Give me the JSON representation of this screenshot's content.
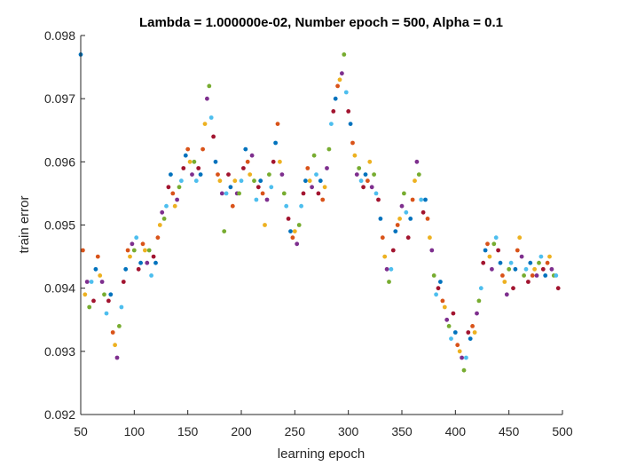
{
  "chart_data": {
    "type": "scatter",
    "title": "Lambda = 1.000000e-02, Number epoch = 500, Alpha = 0.1",
    "xlabel": "learning epoch",
    "ylabel": "train error",
    "xlim": [
      50,
      500
    ],
    "ylim": [
      0.092,
      0.098
    ],
    "xticks": [
      50,
      100,
      150,
      200,
      250,
      300,
      350,
      400,
      450,
      500
    ],
    "xtick_labels": [
      "50",
      "100",
      "150",
      "200",
      "250",
      "300",
      "350",
      "400",
      "450",
      "500"
    ],
    "yticks": [
      0.092,
      0.093,
      0.094,
      0.095,
      0.096,
      0.097,
      0.098
    ],
    "ytick_labels": [
      "0.092",
      "0.093",
      "0.094",
      "0.095",
      "0.096",
      "0.097",
      "0.098"
    ],
    "grid": false,
    "colors": [
      "#0072BD",
      "#D95319",
      "#EDB120",
      "#7E2F8E",
      "#77AC30",
      "#4DBEEE",
      "#A2142F"
    ],
    "points": [
      [
        50,
        0.0977
      ],
      [
        52,
        0.0946
      ],
      [
        54,
        0.0939
      ],
      [
        56,
        0.0941
      ],
      [
        58,
        0.0937
      ],
      [
        60,
        0.0941
      ],
      [
        62,
        0.0938
      ],
      [
        64,
        0.0943
      ],
      [
        66,
        0.0945
      ],
      [
        68,
        0.0942
      ],
      [
        70,
        0.0941
      ],
      [
        72,
        0.0939
      ],
      [
        74,
        0.0936
      ],
      [
        76,
        0.0938
      ],
      [
        78,
        0.0939
      ],
      [
        80,
        0.0933
      ],
      [
        82,
        0.0931
      ],
      [
        84,
        0.0929
      ],
      [
        86,
        0.0934
      ],
      [
        88,
        0.0937
      ],
      [
        90,
        0.0941
      ],
      [
        92,
        0.0943
      ],
      [
        94,
        0.0946
      ],
      [
        96,
        0.0945
      ],
      [
        98,
        0.0947
      ],
      [
        100,
        0.0946
      ],
      [
        102,
        0.0948
      ],
      [
        104,
        0.0943
      ],
      [
        106,
        0.0944
      ],
      [
        108,
        0.0947
      ],
      [
        110,
        0.0946
      ],
      [
        112,
        0.0944
      ],
      [
        114,
        0.0946
      ],
      [
        116,
        0.0942
      ],
      [
        118,
        0.0945
      ],
      [
        120,
        0.0944
      ],
      [
        122,
        0.0948
      ],
      [
        124,
        0.095
      ],
      [
        126,
        0.0952
      ],
      [
        128,
        0.0951
      ],
      [
        130,
        0.0953
      ],
      [
        132,
        0.0956
      ],
      [
        134,
        0.0958
      ],
      [
        136,
        0.0955
      ],
      [
        138,
        0.0953
      ],
      [
        140,
        0.0954
      ],
      [
        142,
        0.0956
      ],
      [
        144,
        0.0957
      ],
      [
        146,
        0.0959
      ],
      [
        148,
        0.0961
      ],
      [
        150,
        0.0962
      ],
      [
        152,
        0.096
      ],
      [
        154,
        0.0958
      ],
      [
        156,
        0.096
      ],
      [
        158,
        0.0957
      ],
      [
        160,
        0.0959
      ],
      [
        162,
        0.0958
      ],
      [
        164,
        0.0962
      ],
      [
        166,
        0.0966
      ],
      [
        168,
        0.097
      ],
      [
        170,
        0.0972
      ],
      [
        172,
        0.0967
      ],
      [
        174,
        0.0964
      ],
      [
        176,
        0.096
      ],
      [
        178,
        0.0958
      ],
      [
        180,
        0.0957
      ],
      [
        182,
        0.0955
      ],
      [
        184,
        0.0949
      ],
      [
        186,
        0.0955
      ],
      [
        188,
        0.0958
      ],
      [
        190,
        0.0956
      ],
      [
        192,
        0.0953
      ],
      [
        194,
        0.0957
      ],
      [
        196,
        0.0955
      ],
      [
        198,
        0.0955
      ],
      [
        200,
        0.0957
      ],
      [
        202,
        0.0959
      ],
      [
        204,
        0.0962
      ],
      [
        206,
        0.096
      ],
      [
        208,
        0.0958
      ],
      [
        210,
        0.0961
      ],
      [
        212,
        0.0957
      ],
      [
        214,
        0.0954
      ],
      [
        216,
        0.0956
      ],
      [
        218,
        0.0957
      ],
      [
        220,
        0.0955
      ],
      [
        222,
        0.095
      ],
      [
        224,
        0.0954
      ],
      [
        226,
        0.0958
      ],
      [
        228,
        0.0956
      ],
      [
        230,
        0.096
      ],
      [
        232,
        0.0963
      ],
      [
        234,
        0.0966
      ],
      [
        236,
        0.096
      ],
      [
        238,
        0.0958
      ],
      [
        240,
        0.0955
      ],
      [
        242,
        0.0953
      ],
      [
        244,
        0.0951
      ],
      [
        246,
        0.0949
      ],
      [
        248,
        0.0948
      ],
      [
        250,
        0.0949
      ],
      [
        252,
        0.0947
      ],
      [
        254,
        0.095
      ],
      [
        256,
        0.0953
      ],
      [
        258,
        0.0955
      ],
      [
        260,
        0.0957
      ],
      [
        262,
        0.0959
      ],
      [
        264,
        0.0957
      ],
      [
        266,
        0.0956
      ],
      [
        268,
        0.0961
      ],
      [
        270,
        0.0958
      ],
      [
        272,
        0.0955
      ],
      [
        274,
        0.0957
      ],
      [
        276,
        0.0954
      ],
      [
        278,
        0.0956
      ],
      [
        280,
        0.0959
      ],
      [
        282,
        0.0962
      ],
      [
        284,
        0.0966
      ],
      [
        286,
        0.0968
      ],
      [
        288,
        0.097
      ],
      [
        290,
        0.0972
      ],
      [
        292,
        0.0973
      ],
      [
        294,
        0.0974
      ],
      [
        296,
        0.0977
      ],
      [
        298,
        0.0971
      ],
      [
        300,
        0.0968
      ],
      [
        302,
        0.0966
      ],
      [
        304,
        0.0963
      ],
      [
        306,
        0.0961
      ],
      [
        308,
        0.0958
      ],
      [
        310,
        0.0959
      ],
      [
        312,
        0.0957
      ],
      [
        314,
        0.0956
      ],
      [
        316,
        0.0958
      ],
      [
        318,
        0.0957
      ],
      [
        320,
        0.096
      ],
      [
        322,
        0.0956
      ],
      [
        324,
        0.0958
      ],
      [
        326,
        0.0955
      ],
      [
        328,
        0.0954
      ],
      [
        330,
        0.0951
      ],
      [
        332,
        0.0948
      ],
      [
        334,
        0.0945
      ],
      [
        336,
        0.0943
      ],
      [
        338,
        0.0941
      ],
      [
        340,
        0.0943
      ],
      [
        342,
        0.0946
      ],
      [
        344,
        0.0949
      ],
      [
        346,
        0.095
      ],
      [
        348,
        0.0951
      ],
      [
        350,
        0.0953
      ],
      [
        352,
        0.0955
      ],
      [
        354,
        0.0952
      ],
      [
        356,
        0.0948
      ],
      [
        358,
        0.0951
      ],
      [
        360,
        0.0954
      ],
      [
        362,
        0.0957
      ],
      [
        364,
        0.096
      ],
      [
        366,
        0.0958
      ],
      [
        368,
        0.0954
      ],
      [
        370,
        0.0952
      ],
      [
        372,
        0.0954
      ],
      [
        374,
        0.0951
      ],
      [
        376,
        0.0948
      ],
      [
        378,
        0.0946
      ],
      [
        380,
        0.0942
      ],
      [
        382,
        0.0939
      ],
      [
        384,
        0.094
      ],
      [
        386,
        0.0941
      ],
      [
        388,
        0.0938
      ],
      [
        390,
        0.0937
      ],
      [
        392,
        0.0935
      ],
      [
        394,
        0.0934
      ],
      [
        396,
        0.0932
      ],
      [
        398,
        0.0936
      ],
      [
        400,
        0.0933
      ],
      [
        402,
        0.0931
      ],
      [
        404,
        0.093
      ],
      [
        406,
        0.0929
      ],
      [
        408,
        0.0927
      ],
      [
        410,
        0.0929
      ],
      [
        412,
        0.0933
      ],
      [
        414,
        0.0932
      ],
      [
        416,
        0.0934
      ],
      [
        418,
        0.0933
      ],
      [
        420,
        0.0936
      ],
      [
        422,
        0.0938
      ],
      [
        424,
        0.094
      ],
      [
        426,
        0.0944
      ],
      [
        428,
        0.0946
      ],
      [
        430,
        0.0947
      ],
      [
        432,
        0.0945
      ],
      [
        434,
        0.0943
      ],
      [
        436,
        0.0947
      ],
      [
        438,
        0.0948
      ],
      [
        440,
        0.0946
      ],
      [
        442,
        0.0944
      ],
      [
        444,
        0.0942
      ],
      [
        446,
        0.0941
      ],
      [
        448,
        0.0939
      ],
      [
        450,
        0.0943
      ],
      [
        452,
        0.0944
      ],
      [
        454,
        0.094
      ],
      [
        456,
        0.0943
      ],
      [
        458,
        0.0946
      ],
      [
        460,
        0.0948
      ],
      [
        462,
        0.0945
      ],
      [
        464,
        0.0942
      ],
      [
        466,
        0.0943
      ],
      [
        468,
        0.0941
      ],
      [
        470,
        0.0944
      ],
      [
        472,
        0.0942
      ],
      [
        474,
        0.0943
      ],
      [
        476,
        0.0942
      ],
      [
        478,
        0.0944
      ],
      [
        480,
        0.0945
      ],
      [
        482,
        0.0943
      ],
      [
        484,
        0.0942
      ],
      [
        486,
        0.0944
      ],
      [
        488,
        0.0945
      ],
      [
        490,
        0.0943
      ],
      [
        492,
        0.0942
      ],
      [
        494,
        0.0942
      ],
      [
        496,
        0.094
      ]
    ]
  }
}
